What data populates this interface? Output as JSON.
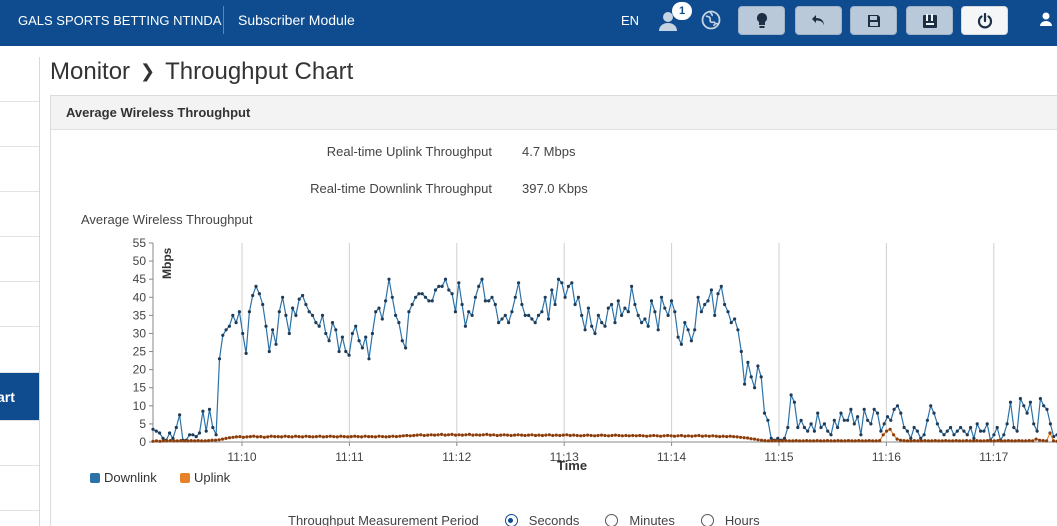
{
  "topbar": {
    "org_name": "GALS SPORTS BETTING NTINDA",
    "module": "Subscriber Module",
    "language": "EN",
    "notification_count": "1",
    "brand_color": "#0e4c8f"
  },
  "breadcrumb": {
    "section": "Monitor",
    "page": "Throughput Chart"
  },
  "sidebar": {
    "active_label": "art"
  },
  "panel": {
    "title": "Average Wireless Throughput",
    "uplink_label": "Real-time Uplink Throughput",
    "uplink_value": "4.7 Mbps",
    "downlink_label": "Real-time Downlink Throughput",
    "downlink_value": "397.0 Kbps",
    "chart_title": "Average Wireless Throughput"
  },
  "period": {
    "label": "Throughput Measurement Period",
    "options": [
      "Seconds",
      "Minutes",
      "Hours"
    ],
    "selected": "Seconds"
  },
  "chart_data": {
    "type": "line",
    "title": "Average Wireless Throughput",
    "xlabel": "Time",
    "ylabel": "Mbps",
    "ylim": [
      0,
      55
    ],
    "yticks": [
      0,
      5,
      10,
      15,
      20,
      25,
      30,
      35,
      40,
      45,
      50,
      55
    ],
    "xtick_labels": [
      "11:10",
      "11:11",
      "11:12",
      "11:13",
      "11:14",
      "11:15",
      "11:16",
      "11:17"
    ],
    "grid": "vertical",
    "legend": "bottom-left",
    "series": [
      {
        "name": "Downlink",
        "color": "#2b72a8",
        "values": [
          3.5,
          3,
          2.5,
          1,
          0.5,
          2.5,
          1,
          4,
          7.5,
          0.5,
          0.5,
          2,
          2,
          1.5,
          2.5,
          8.5,
          3,
          9,
          4,
          2,
          23,
          29.5,
          31,
          32,
          35,
          33,
          36,
          30,
          24.5,
          36,
          40.5,
          43,
          41,
          38,
          32,
          25,
          31,
          27,
          36,
          40,
          35,
          30,
          37,
          35,
          39.5,
          40.5,
          38,
          36,
          35,
          33,
          32,
          35,
          30,
          28,
          33,
          31,
          25,
          29,
          25,
          24,
          30,
          32,
          28,
          26,
          29,
          23,
          30,
          36,
          37,
          34,
          39,
          45,
          40,
          35,
          33,
          28,
          26,
          36,
          38,
          40,
          41,
          41,
          40,
          39,
          39,
          42,
          43,
          43,
          45,
          42,
          41,
          36,
          44,
          38,
          32,
          36,
          35,
          40,
          43,
          45,
          39,
          39,
          40,
          38,
          33,
          34,
          35,
          33,
          36,
          40,
          44,
          38,
          35,
          35,
          34,
          33,
          35,
          36,
          40,
          34,
          42,
          38,
          45,
          44,
          40,
          43,
          44,
          38,
          40,
          35,
          31,
          37,
          32,
          30,
          35,
          33,
          32,
          37,
          38,
          33,
          39,
          35,
          37,
          36,
          43,
          38,
          35,
          33,
          34,
          32,
          39,
          36,
          31,
          40,
          37,
          35,
          39,
          36,
          29,
          27,
          33,
          31,
          28,
          31,
          40,
          36,
          38,
          39,
          42,
          35,
          41,
          43,
          38,
          36,
          33,
          34,
          31,
          25,
          16,
          22,
          18,
          15,
          21,
          18,
          8,
          6,
          1,
          0.5,
          1,
          0.5,
          1,
          4,
          13,
          11,
          4,
          6,
          4,
          3,
          5,
          3,
          8,
          4,
          5,
          3,
          2,
          6,
          4,
          8,
          6,
          6,
          9,
          5,
          7,
          2,
          9,
          6,
          5,
          9,
          8,
          3,
          5,
          7,
          6,
          9,
          10,
          8,
          4,
          3,
          1,
          4,
          3,
          1,
          2,
          6,
          10,
          8,
          5,
          3,
          2,
          3,
          4,
          2,
          3,
          4,
          3,
          2,
          4,
          1,
          5,
          3,
          3,
          5,
          0.5,
          2,
          4,
          0.5,
          2,
          5,
          11,
          4,
          3,
          12,
          10,
          8,
          11,
          5,
          3,
          12,
          10,
          9,
          5,
          1.5,
          2
        ]
      },
      {
        "name": "Uplink",
        "color": "#e8822a",
        "values": [
          0.2,
          0.3,
          0.2,
          0.3,
          0.3,
          0.4,
          0.3,
          0.3,
          0.4,
          0.3,
          0.3,
          0.4,
          0.3,
          0.4,
          0.3,
          0.3,
          0.4,
          0.5,
          0.5,
          0.6,
          0.8,
          1,
          1.2,
          1.3,
          1.4,
          1.5,
          1.3,
          1.4,
          1.5,
          1.6,
          1.4,
          1.5,
          1.3,
          1.4,
          1.6,
          1.5,
          1.5,
          1.4,
          1.6,
          1.5,
          1.4,
          1.6,
          1.5,
          1.4,
          1.6,
          1.5,
          1.4,
          1.5,
          1.6,
          1.4,
          1.5,
          1.6,
          1.5,
          1.4,
          1.6,
          1.5,
          1.4,
          1.5,
          1.6,
          1.5,
          1.4,
          1.6,
          1.5,
          1.5,
          1.4,
          1.6,
          1.5,
          1.4,
          1.5,
          1.6,
          1.5,
          1.6,
          1.7,
          1.8,
          1.7,
          1.8,
          1.9,
          2,
          1.8,
          1.9,
          2,
          1.9,
          2,
          2.1,
          1.9,
          2,
          2.1,
          1.9,
          2,
          1.9,
          2,
          2.1,
          1.9,
          2,
          1.9,
          2,
          2.1,
          1.9,
          2,
          1.8,
          1.9,
          2,
          1.9,
          1.8,
          1.9,
          2,
          1.9,
          1.8,
          1.9,
          2,
          1.8,
          1.9,
          1.8,
          1.9,
          2,
          1.8,
          1.9,
          1.8,
          1.9,
          2,
          1.8,
          1.9,
          1.8,
          1.7,
          1.8,
          1.9,
          1.8,
          1.7,
          1.8,
          1.9,
          1.8,
          1.7,
          1.8,
          1.9,
          1.8,
          1.7,
          1.8,
          1.7,
          1.8,
          1.7,
          1.8,
          1.7,
          1.6,
          1.7,
          1.8,
          1.7,
          1.6,
          1.7,
          1.8,
          1.7,
          1.6,
          1.7,
          1.8,
          1.6,
          1.7,
          1.6,
          1.7,
          1.8,
          1.6,
          1.7,
          1.6,
          1.7,
          1.6,
          1.5,
          1.6,
          1.5,
          1.6,
          1.5,
          1.4,
          1.3,
          1.2,
          1.1,
          0.9,
          0.8,
          0.6,
          0.5,
          0.4,
          0.3,
          0.3,
          0.4,
          0.3,
          0.3,
          0.4,
          0.3,
          0.3,
          0.4,
          0.3,
          0.3,
          0.4,
          0.3,
          0.3,
          0.4,
          0.3,
          0.3,
          0.4,
          0.3,
          0.3,
          0.4,
          0.3,
          0.3,
          0.4,
          0.3,
          0.3,
          0.4,
          0.3,
          0.3,
          0.4,
          0.3,
          0.3,
          0.4,
          2,
          3,
          3.5,
          2,
          0.8,
          0.5,
          0.4,
          0.3,
          0.3,
          0.4,
          0.3,
          0.3,
          0.4,
          0.3,
          0.3,
          0.4,
          0.3,
          0.3,
          0.4,
          0.3,
          0.3,
          0.4,
          0.3,
          0.3,
          0.4,
          0.3,
          0.3,
          0.4,
          0.3,
          0.3,
          0.4,
          0.3,
          0.3,
          0.4,
          0.3,
          0.3,
          0.4,
          0.3,
          0.3,
          0.4,
          0.3,
          0.3,
          0.4,
          0.3,
          0.8,
          0.5,
          0.4,
          0.3,
          2.5,
          0.3,
          0.2
        ]
      }
    ]
  }
}
